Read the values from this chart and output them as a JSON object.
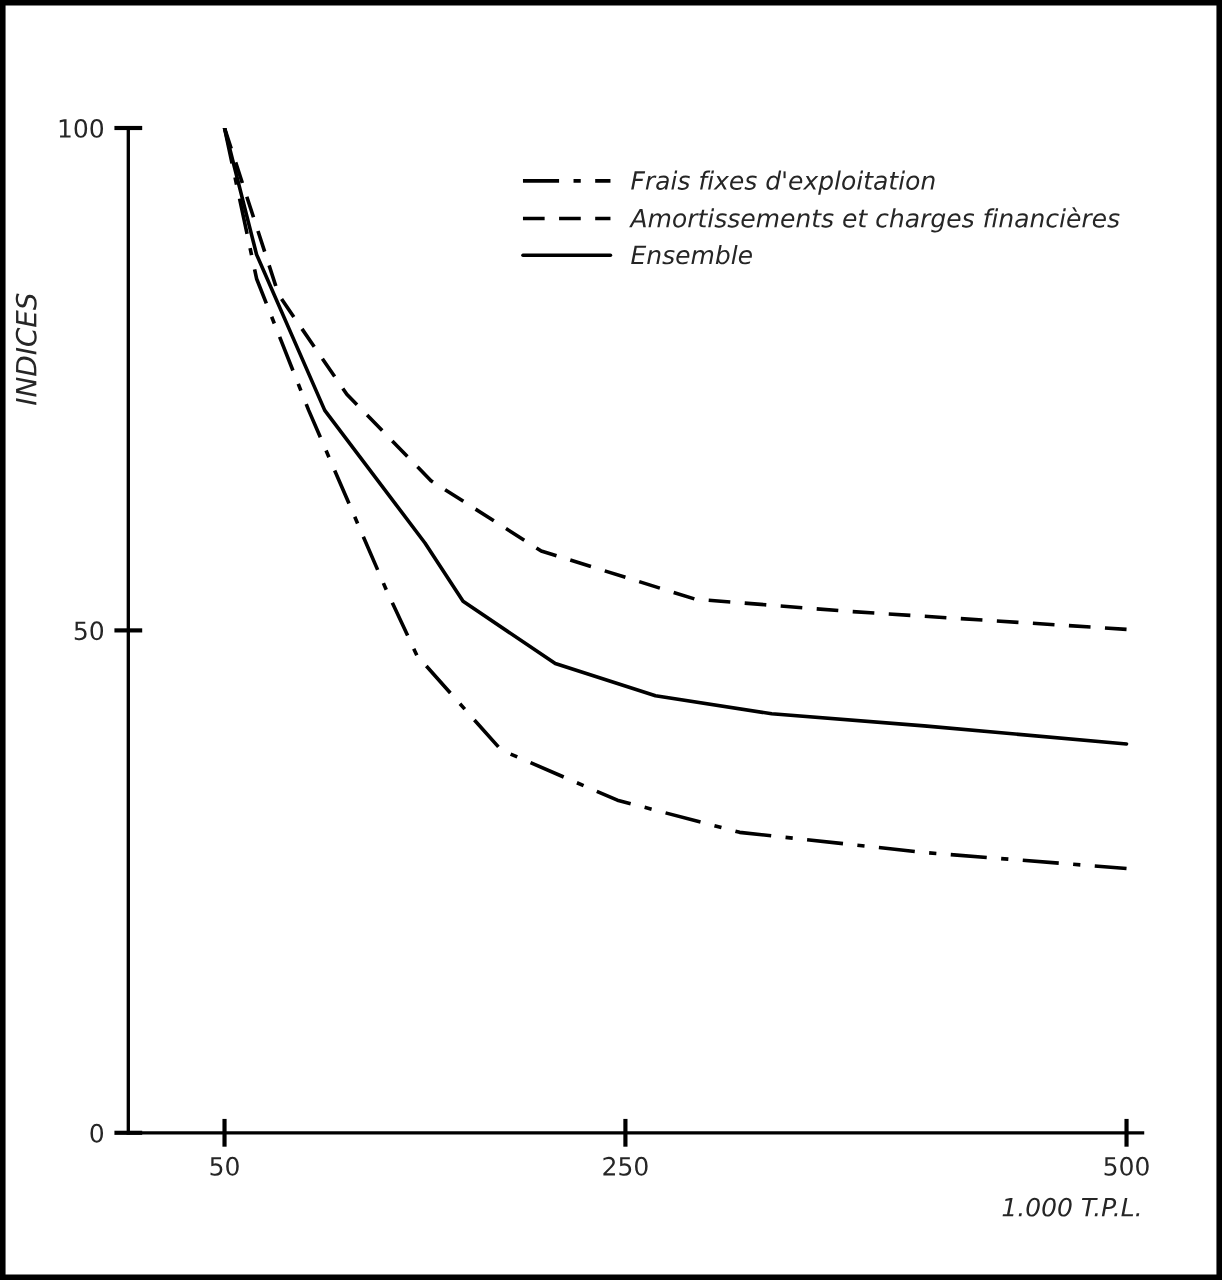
{
  "chart_data": {
    "type": "line",
    "xlabel": "1.000 T.P.L.",
    "ylabel": "INDICES",
    "xlim": [
      2,
      508
    ],
    "ylim": [
      0,
      100
    ],
    "xticks": [
      50,
      250,
      500
    ],
    "yticks": [
      0,
      50,
      100
    ],
    "grid": false,
    "legend": "top right",
    "marker": "none",
    "series": [
      {
        "name": "Frais fixes d'exploitation",
        "color": "#000000",
        "line_style": "dashdot",
        "x": [
          50,
          66,
          92,
          131,
          146,
          188,
          246,
          307,
          399,
          500
        ],
        "values": [
          100,
          85,
          71.9,
          53.9,
          47.5,
          38.1,
          33.1,
          29.9,
          27.9,
          26.3
        ]
      },
      {
        "name": "Amortissements et charges financières",
        "color": "#000000",
        "line_style": "dashed",
        "x": [
          50,
          77,
          111,
          153,
          208,
          285,
          361,
          500
        ],
        "values": [
          100,
          83.4,
          73.5,
          64.9,
          57.9,
          53.1,
          51.9,
          50.1
        ]
      },
      {
        "name": "Ensemble",
        "color": "#000000",
        "line_style": "solid",
        "x": [
          50,
          66,
          100,
          150,
          169,
          215,
          265,
          323,
          399,
          500
        ],
        "values": [
          100,
          87.4,
          71.9,
          58.7,
          52.9,
          46.7,
          43.5,
          41.7,
          40.5,
          38.7
        ]
      }
    ]
  }
}
